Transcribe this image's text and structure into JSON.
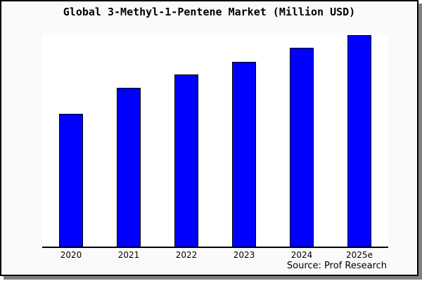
{
  "chart_data": {
    "type": "bar",
    "title": "Global 3-Methyl-1-Pentene Market (Million USD)",
    "categories": [
      "2020",
      "2021",
      "2022",
      "2023",
      "2024",
      "2025e"
    ],
    "values": [
      62.8,
      75.2,
      81.4,
      87.5,
      93.9,
      100
    ],
    "values_note": "y-axis unlabeled in image; values estimated from bar heights, normalized so 2025e = 100",
    "xlabel": "",
    "ylabel": "",
    "ylim": [
      0,
      100
    ],
    "grid": false,
    "legend": "none",
    "bar_color": "#0000ff",
    "bar_border_color": "#000000",
    "axis_color": "#000000",
    "source": "Source: Prof Research"
  }
}
